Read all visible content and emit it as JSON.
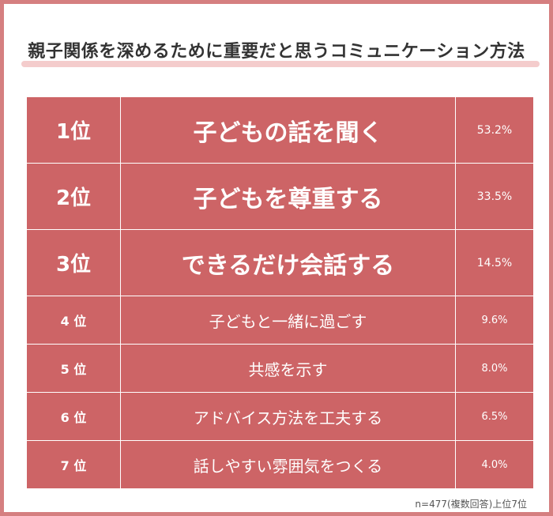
{
  "title": "親子関係を深めるために重要だと思うコミュニケーション方法",
  "footnote": "n=477(複数回答)上位7位",
  "colors": {
    "border": "#d57f80",
    "row_fill": "#cd6466",
    "title_underline": "#f4cccc"
  },
  "chart_data": {
    "type": "table",
    "title": "親子関係を深めるために重要だと思うコミュニケーション方法",
    "rows": [
      {
        "rank": "1位",
        "label": "子どもの話を聞く",
        "percent": "53.2%",
        "value": 53.2
      },
      {
        "rank": "2位",
        "label": "子どもを尊重する",
        "percent": "33.5%",
        "value": 33.5
      },
      {
        "rank": "3位",
        "label": "できるだけ会話する",
        "percent": "14.5%",
        "value": 14.5
      },
      {
        "rank": "4 位",
        "label": "子どもと一緒に過ごす",
        "percent": "9.6%",
        "value": 9.6
      },
      {
        "rank": "5 位",
        "label": "共感を示す",
        "percent": "8.0%",
        "value": 8.0
      },
      {
        "rank": "6 位",
        "label": "アドバイス方法を工夫する",
        "percent": "6.5%",
        "value": 6.5
      },
      {
        "rank": "7 位",
        "label": "話しやすい雰囲気をつくる",
        "percent": "4.0%",
        "value": 4.0
      }
    ],
    "note": "n=477(複数回答)上位7位"
  }
}
